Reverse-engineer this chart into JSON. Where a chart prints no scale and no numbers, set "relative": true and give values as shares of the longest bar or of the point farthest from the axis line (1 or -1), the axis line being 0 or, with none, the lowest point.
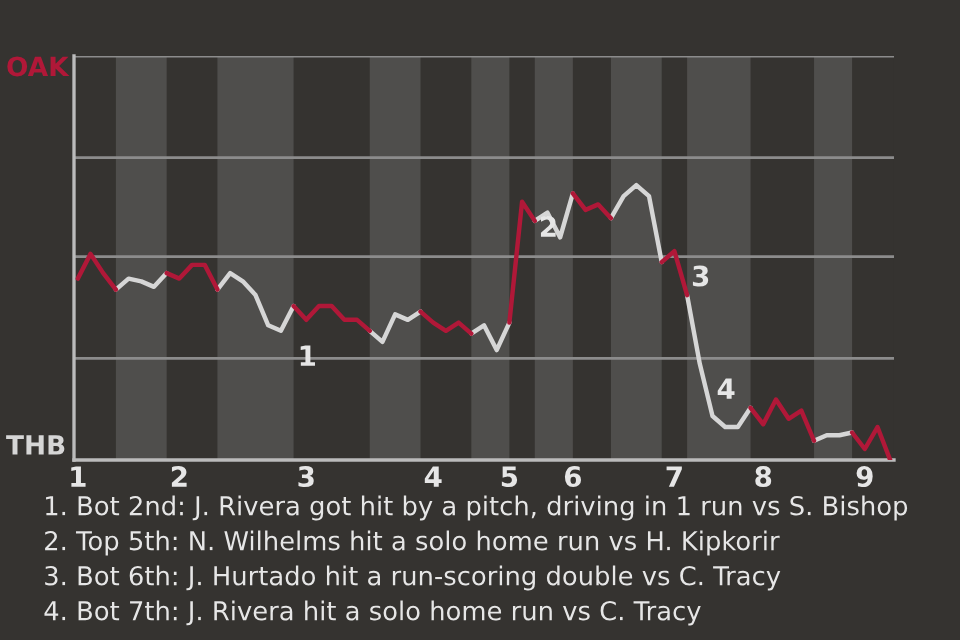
{
  "chart_data": {
    "type": "line",
    "relative": true,
    "categories": [
      "1",
      null,
      null,
      null,
      null,
      null,
      null,
      null,
      "2",
      null,
      null,
      null,
      null,
      null,
      null,
      null,
      null,
      null,
      "3",
      null,
      null,
      null,
      null,
      null,
      null,
      null,
      null,
      null,
      "4",
      null,
      null,
      null,
      null,
      null,
      "5",
      null,
      null,
      null,
      null,
      "6",
      null,
      null,
      null,
      null,
      null,
      null,
      null,
      "7",
      null,
      null,
      null,
      null,
      null,
      null,
      "8",
      null,
      null,
      null,
      null,
      null,
      null,
      null,
      "9",
      null,
      null
    ],
    "series": [
      {
        "color": "#d6d6d6",
        "values": [
          null,
          null,
          null,
          0.62,
          0.66,
          0.65,
          0.63,
          0.68,
          null,
          null,
          null,
          0.62,
          0.68,
          0.65,
          0.6,
          0.49,
          0.47,
          0.56,
          null,
          null,
          null,
          null,
          null,
          0.47,
          0.43,
          0.53,
          0.51,
          0.54,
          null,
          null,
          null,
          0.46,
          0.49,
          0.4,
          0.5,
          null,
          0.87,
          0.9,
          0.81,
          0.97,
          null,
          null,
          0.88,
          0.96,
          1.0,
          0.96,
          0.72,
          null,
          0.6,
          0.35,
          0.16,
          0.12,
          0.12,
          0.19,
          null,
          null,
          null,
          null,
          0.07,
          0.09,
          0.09,
          0.1,
          null,
          null,
          null
        ]
      },
      {
        "color": "#b01838",
        "values": [
          0.66,
          0.75,
          0.68,
          0.62,
          null,
          null,
          null,
          0.68,
          0.66,
          0.71,
          0.71,
          0.62,
          null,
          null,
          null,
          null,
          null,
          0.56,
          0.51,
          0.56,
          0.56,
          0.51,
          0.51,
          0.47,
          null,
          null,
          null,
          0.54,
          0.5,
          0.47,
          0.5,
          0.46,
          null,
          null,
          0.5,
          0.94,
          0.87,
          null,
          null,
          0.97,
          0.91,
          0.93,
          0.88,
          null,
          null,
          null,
          0.72,
          0.76,
          0.6,
          null,
          null,
          null,
          null,
          0.19,
          0.13,
          0.22,
          0.15,
          0.18,
          0.07,
          null,
          null,
          0.1,
          0.04,
          0.12,
          0.0
        ]
      }
    ],
    "marker": "none",
    "line_style": "solid",
    "ref_lines": [
      {
        "axis": "y",
        "value": 0.37,
        "color": "#8c8c8c"
      },
      {
        "axis": "y",
        "value": 0.74,
        "color": "#8c8c8c"
      },
      {
        "axis": "y",
        "value": 1.1,
        "color": "#8c8c8c"
      },
      {
        "axis": "y",
        "value": 1.47,
        "color": "#8c8c8c"
      }
    ],
    "annotations": [
      "OAK",
      "THB",
      {
        "text": "1",
        "y": 0.47
      },
      {
        "text": "2",
        "y": 0.94
      },
      {
        "text": "3",
        "y": 0.76
      },
      {
        "text": "4",
        "y": 0.35
      },
      "1. Bot 2nd: J. Rivera got hit by a pitch, driving in 1 run vs S. Bishop",
      "2. Top 5th: N. Wilhelms hit a solo home run vs H. Kipkorir",
      "3. Bot 6th: J. Hurtado hit a run-scoring double vs C. Tracy",
      "4. Bot 7th: J. Rivera hit a solo home run vs C. Tracy"
    ]
  }
}
